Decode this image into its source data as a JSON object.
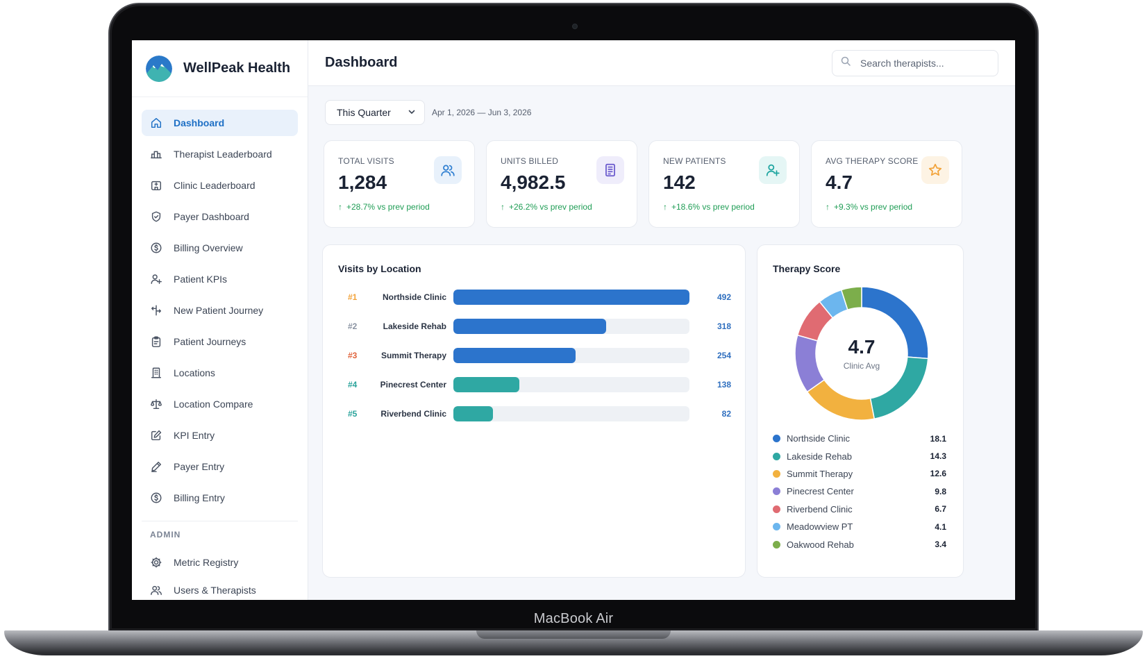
{
  "device": {
    "label": "MacBook Air"
  },
  "brand": {
    "name": "WellPeak Health"
  },
  "sidebar": {
    "items": [
      {
        "label": "Dashboard",
        "icon": "home-icon",
        "active": true
      },
      {
        "label": "Therapist Leaderboard",
        "icon": "bar-chart-icon"
      },
      {
        "label": "Clinic Leaderboard",
        "icon": "building-icon"
      },
      {
        "label": "Payer Dashboard",
        "icon": "shield-check-icon"
      },
      {
        "label": "Billing Overview",
        "icon": "dollar-circle-icon"
      },
      {
        "label": "Patient KPIs",
        "icon": "user-plus-icon"
      },
      {
        "label": "New Patient Journey",
        "icon": "route-icon"
      },
      {
        "label": "Patient Journeys",
        "icon": "clipboard-icon"
      },
      {
        "label": "Locations",
        "icon": "office-icon"
      },
      {
        "label": "Location Compare",
        "icon": "scale-icon"
      },
      {
        "label": "KPI Entry",
        "icon": "edit-icon"
      },
      {
        "label": "Payer Entry",
        "icon": "pen-icon"
      },
      {
        "label": "Billing Entry",
        "icon": "dollar-circle-icon"
      }
    ],
    "admin_section": "ADMIN",
    "admin_items": [
      {
        "label": "Metric Registry",
        "icon": "gear-icon"
      },
      {
        "label": "Users & Therapists",
        "icon": "users-icon"
      }
    ]
  },
  "header": {
    "title": "Dashboard",
    "search_placeholder": "Search therapists..."
  },
  "filters": {
    "period": "This Quarter",
    "date_range": "Apr 1, 2026 — Jun 3, 2026"
  },
  "kpis": [
    {
      "label": "TOTAL VISITS",
      "value": "1,284",
      "change": "+28.7% vs prev period",
      "icon": "users-icon",
      "color": "#2f7fd1",
      "bg": "#e8f1fb"
    },
    {
      "label": "UNITS BILLED",
      "value": "4,982.5",
      "change": "+26.2% vs prev period",
      "icon": "document-icon",
      "color": "#6a5acd",
      "bg": "#efedfb"
    },
    {
      "label": "NEW PATIENTS",
      "value": "142",
      "change": "+18.6% vs prev period",
      "icon": "user-plus-icon",
      "color": "#1ea5a0",
      "bg": "#e5f6f5"
    },
    {
      "label": "AVG THERAPY SCORE",
      "value": "4.7",
      "change": "+9.3% vs prev period",
      "icon": "star-icon",
      "color": "#f2a33a",
      "bg": "#fdf3e4"
    }
  ],
  "visits_by_location": {
    "title": "Visits by Location",
    "max": 492,
    "rows": [
      {
        "rank": "#1",
        "name": "Northside Clinic",
        "value": 492,
        "rank_color": "#f2a33a",
        "bar_color": "#2c74cc"
      },
      {
        "rank": "#2",
        "name": "Lakeside Rehab",
        "value": 318,
        "rank_color": "#8a93a2",
        "bar_color": "#2c74cc"
      },
      {
        "rank": "#3",
        "name": "Summit Therapy",
        "value": 254,
        "rank_color": "#e0643c",
        "bar_color": "#2c74cc"
      },
      {
        "rank": "#4",
        "name": "Pinecrest Center",
        "value": 138,
        "rank_color": "#2aa39b",
        "bar_color": "#2fa8a3"
      },
      {
        "rank": "#5",
        "name": "Riverbend Clinic",
        "value": 82,
        "rank_color": "#2aa39b",
        "bar_color": "#2fa8a3"
      }
    ]
  },
  "therapy_score": {
    "title": "Therapy Score",
    "center_value": "4.7",
    "center_label": "Clinic Avg",
    "chart_data": {
      "type": "pie",
      "categories": [
        "Northside Clinic",
        "Lakeside Rehab",
        "Summit Therapy",
        "Pinecrest Center",
        "Riverbend Clinic",
        "Meadowview PT",
        "Oakwood Rehab"
      ],
      "values": [
        18.1,
        14.3,
        12.6,
        9.8,
        6.7,
        4.1,
        3.4
      ],
      "colors": [
        "#2c74cc",
        "#2fa8a3",
        "#f2b13f",
        "#8b7fd6",
        "#e06b72",
        "#6cb6ee",
        "#7cae4b"
      ],
      "title": "Therapy Score",
      "legend": "bottom"
    }
  }
}
